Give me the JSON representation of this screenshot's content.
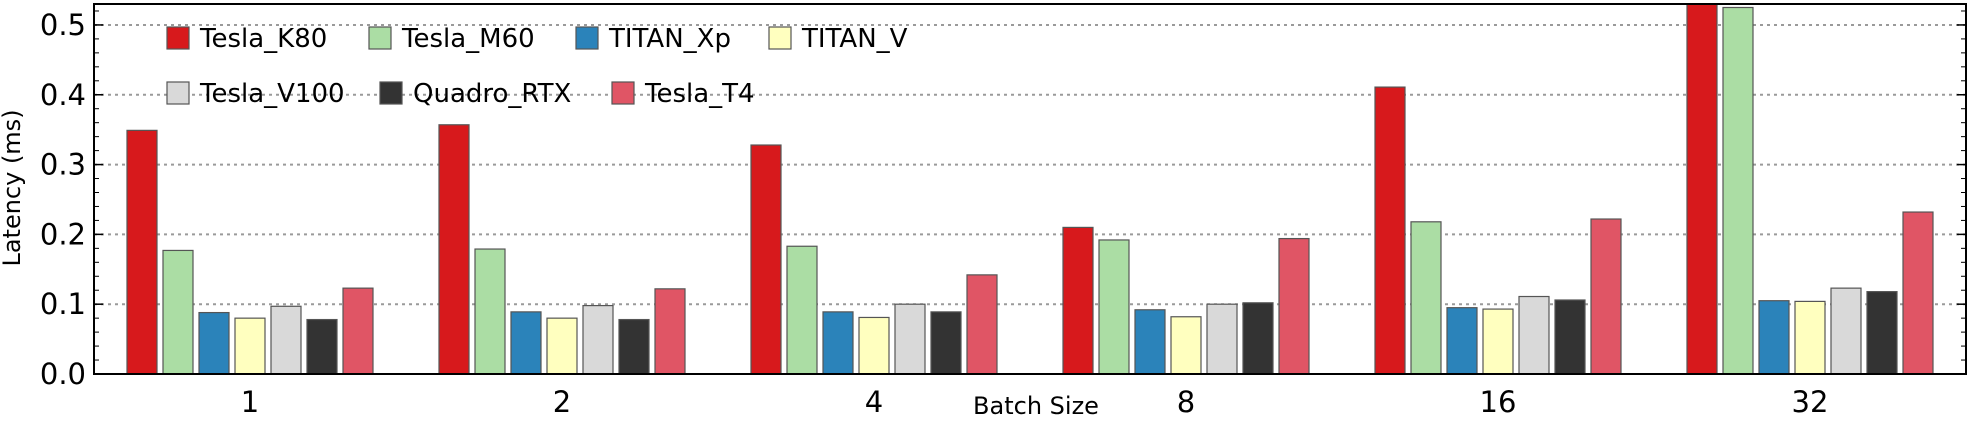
{
  "chart_data": {
    "type": "bar",
    "xlabel": "Batch Size",
    "ylabel": "Latency (ms)",
    "ylim": [
      0,
      0.53
    ],
    "yticks": [
      "0.0",
      "0.1",
      "0.2",
      "0.3",
      "0.4",
      "0.5"
    ],
    "grid": "horizontal-dotted",
    "legend_placement": "top-left",
    "categories": [
      "1",
      "2",
      "4",
      "8",
      "16",
      "32"
    ],
    "series": [
      {
        "name": "Tesla_K80",
        "color": "#d7191c",
        "values": [
          0.349,
          0.357,
          0.328,
          0.21,
          0.411,
          0.535
        ]
      },
      {
        "name": "Tesla_M60",
        "color": "#abdda4",
        "values": [
          0.177,
          0.179,
          0.183,
          0.192,
          0.218,
          0.525
        ]
      },
      {
        "name": "TITAN_Xp",
        "color": "#2b83ba",
        "values": [
          0.088,
          0.089,
          0.089,
          0.092,
          0.095,
          0.105
        ]
      },
      {
        "name": "TITAN_V",
        "color": "#ffffbf",
        "values": [
          0.08,
          0.08,
          0.081,
          0.082,
          0.093,
          0.104
        ]
      },
      {
        "name": "Tesla_V100",
        "color": "#d9d9d9",
        "values": [
          0.097,
          0.098,
          0.1,
          0.1,
          0.111,
          0.123
        ]
      },
      {
        "name": "Quadro_RTX",
        "color": "#333333",
        "values": [
          0.078,
          0.078,
          0.089,
          0.102,
          0.106,
          0.118
        ]
      },
      {
        "name": "Tesla_T4",
        "color": "#e05565",
        "values": [
          0.123,
          0.122,
          0.142,
          0.194,
          0.222,
          0.232
        ]
      }
    ]
  }
}
